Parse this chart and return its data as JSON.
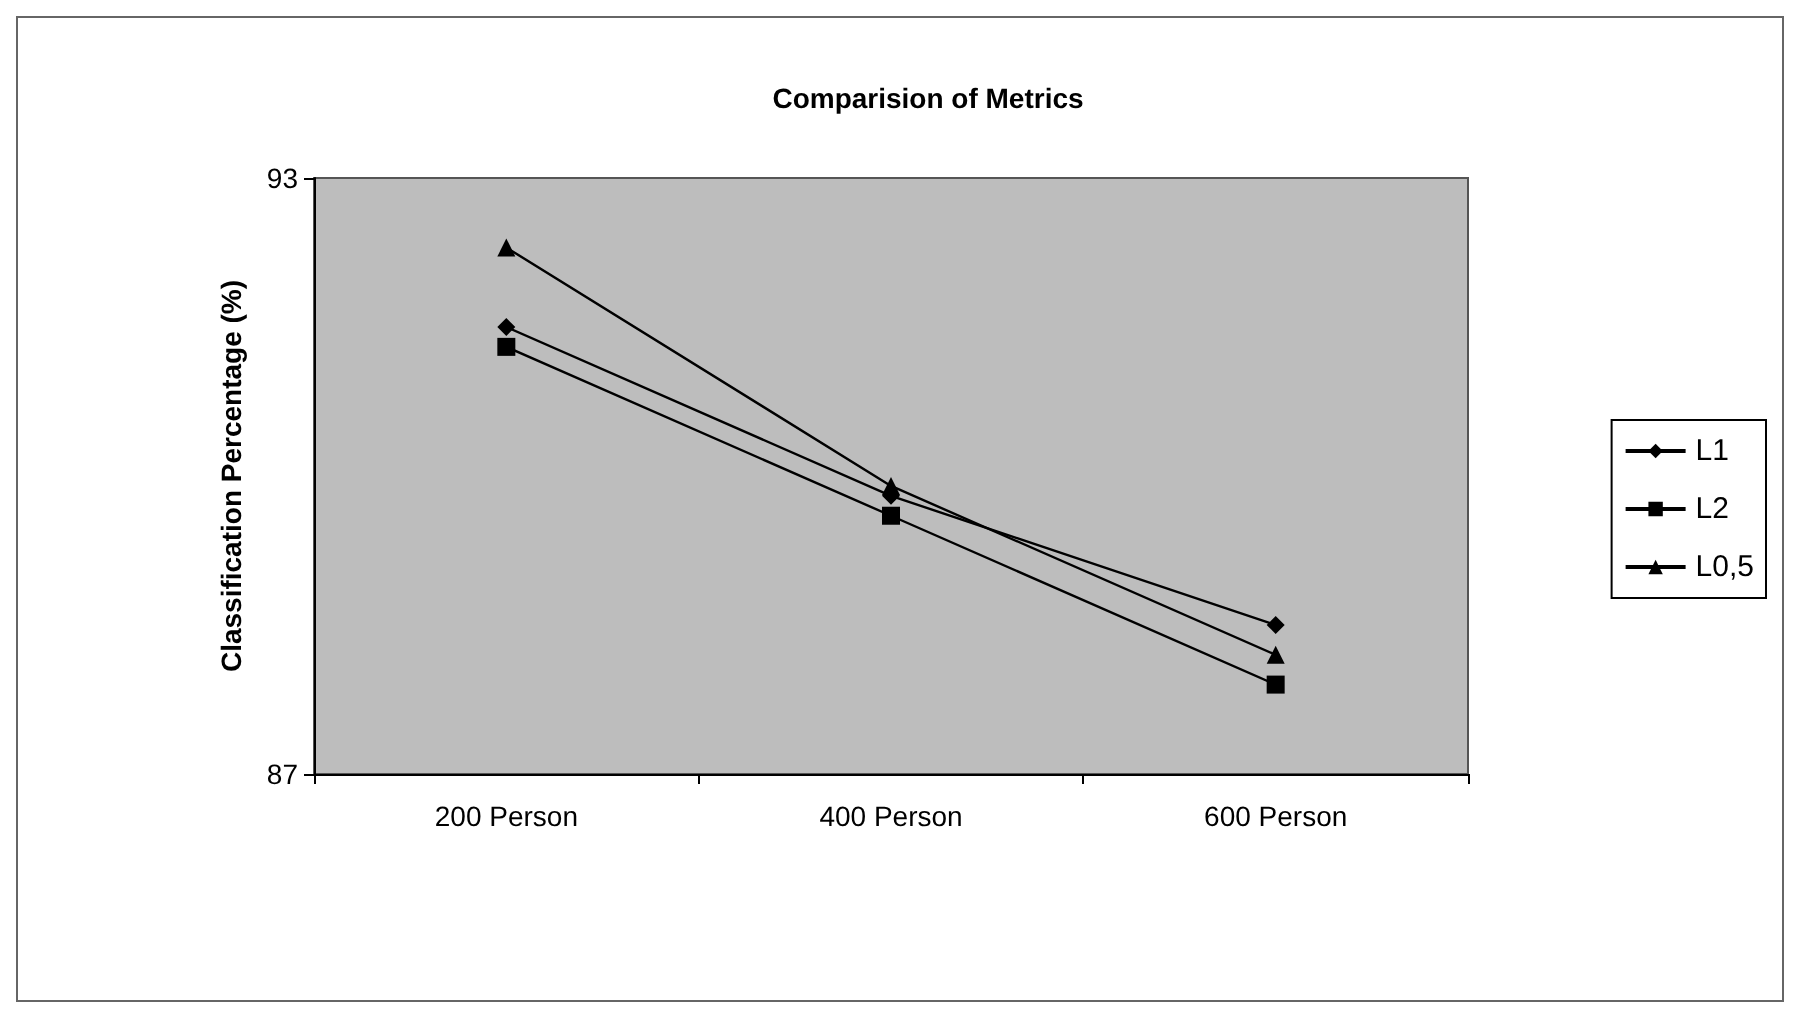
{
  "chart_data": {
    "type": "line",
    "title": "Comparision of Metrics",
    "ylabel": "Classification Percentage (%)",
    "categories": [
      "200 Person",
      "400 Person",
      "600 Person"
    ],
    "series": [
      {
        "name": "L1",
        "color": "#000000",
        "marker": "diamond",
        "values": [
          91.5,
          89.8,
          88.5
        ]
      },
      {
        "name": "L2",
        "color": "#000000",
        "marker": "square",
        "values": [
          91.3,
          89.6,
          87.9
        ]
      },
      {
        "name": "L0,5",
        "color": "#000000",
        "marker": "triangle",
        "values": [
          92.3,
          89.9,
          88.2
        ]
      }
    ],
    "ylim": [
      87,
      93
    ],
    "yticks": [
      87,
      93
    ],
    "grid": false,
    "legend": "right",
    "line_style": "solid"
  }
}
